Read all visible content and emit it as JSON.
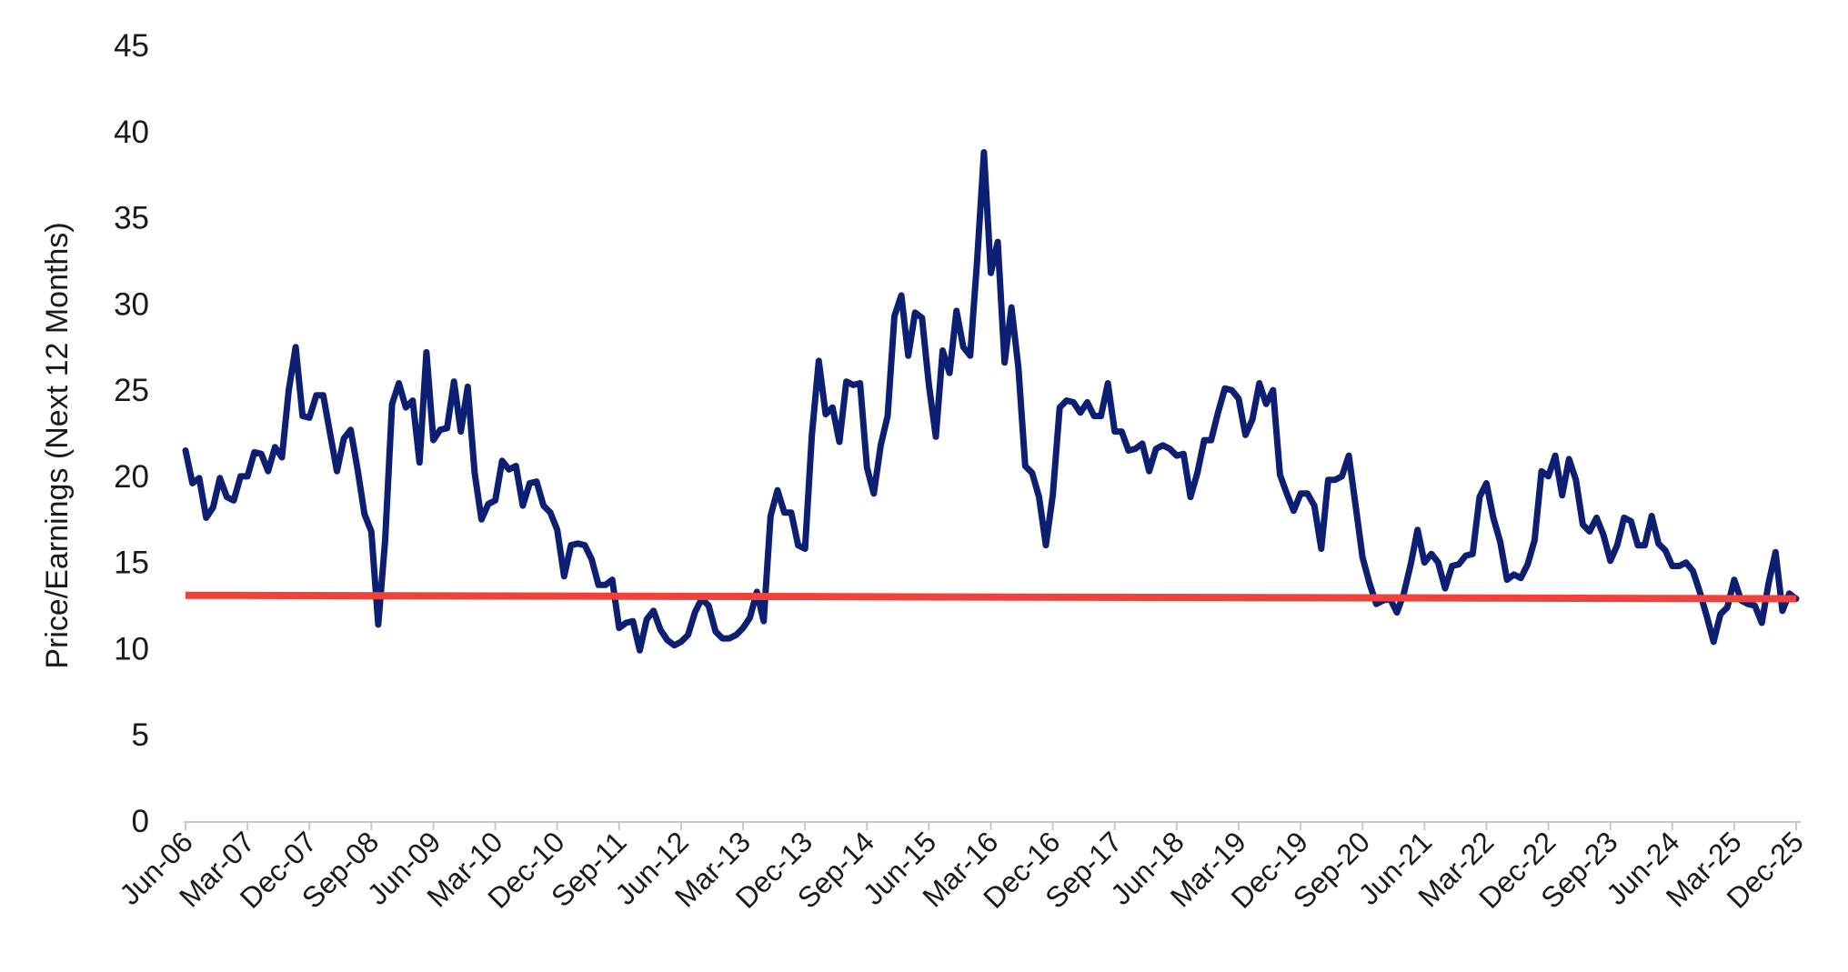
{
  "chart_data": {
    "type": "line",
    "title": "",
    "xlabel": "",
    "ylabel": "Price/Earnings (Next 12 Months)",
    "ylim": [
      0,
      45
    ],
    "y_ticks": [
      0,
      5,
      10,
      15,
      20,
      25,
      30,
      35,
      40,
      45
    ],
    "x_tick_labels": [
      "Jun-06",
      "Mar-07",
      "Dec-07",
      "Sep-08",
      "Jun-09",
      "Mar-10",
      "Dec-10",
      "Sep-11",
      "Jun-12",
      "Mar-13",
      "Dec-13",
      "Sep-14",
      "Jun-15",
      "Mar-16",
      "Dec-16",
      "Sep-17",
      "Jun-18",
      "Mar-19",
      "Dec-19",
      "Sep-20",
      "Jun-21",
      "Mar-22",
      "Dec-22",
      "Sep-23",
      "Jun-24",
      "Mar-25",
      "Dec-25"
    ],
    "grid": false,
    "colors": {
      "pe_line": "#0d1f73",
      "average_line": "#f0423a"
    },
    "series": [
      {
        "key": "pe_ratio",
        "color": "#0d1f73",
        "points": [
          [
            "Jun-06",
            21.5
          ],
          [
            "Jul-06",
            19.6
          ],
          [
            "Aug-06",
            19.9
          ],
          [
            "Sep-06",
            17.6
          ],
          [
            "Oct-06",
            18.2
          ],
          [
            "Nov-06",
            19.9
          ],
          [
            "Dec-06",
            18.8
          ],
          [
            "Jan-07",
            18.6
          ],
          [
            "Feb-07",
            20.0
          ],
          [
            "Mar-07",
            20.0
          ],
          [
            "Apr-07",
            21.4
          ],
          [
            "May-07",
            21.3
          ],
          [
            "Jun-07",
            20.3
          ],
          [
            "Jul-07",
            21.7
          ],
          [
            "Aug-07",
            21.1
          ],
          [
            "Sep-07",
            25.0
          ],
          [
            "Oct-07",
            27.5
          ],
          [
            "Nov-07",
            23.5
          ],
          [
            "Dec-07",
            23.4
          ],
          [
            "Jan-08",
            24.7
          ],
          [
            "Feb-08",
            24.7
          ],
          [
            "Mar-08",
            22.5
          ],
          [
            "Apr-08",
            20.3
          ],
          [
            "May-08",
            22.2
          ],
          [
            "Jun-08",
            22.7
          ],
          [
            "Jul-08",
            20.4
          ],
          [
            "Aug-08",
            17.8
          ],
          [
            "Sep-08",
            16.8
          ],
          [
            "Oct-08",
            11.4
          ],
          [
            "Nov-08",
            16.3
          ],
          [
            "Dec-08",
            24.2
          ],
          [
            "Jan-09",
            25.4
          ],
          [
            "Feb-09",
            24.0
          ],
          [
            "Mar-09",
            24.4
          ],
          [
            "Apr-09",
            20.8
          ],
          [
            "May-09",
            27.2
          ],
          [
            "Jun-09",
            22.1
          ],
          [
            "Jul-09",
            22.7
          ],
          [
            "Aug-09",
            22.8
          ],
          [
            "Sep-09",
            25.5
          ],
          [
            "Oct-09",
            22.6
          ],
          [
            "Nov-09",
            25.2
          ],
          [
            "Dec-09",
            20.2
          ],
          [
            "Jan-10",
            17.5
          ],
          [
            "Feb-10",
            18.4
          ],
          [
            "Mar-10",
            18.6
          ],
          [
            "Apr-10",
            20.9
          ],
          [
            "May-10",
            20.4
          ],
          [
            "Jun-10",
            20.6
          ],
          [
            "Jul-10",
            18.3
          ],
          [
            "Aug-10",
            19.6
          ],
          [
            "Sep-10",
            19.7
          ],
          [
            "Oct-10",
            18.3
          ],
          [
            "Nov-10",
            17.9
          ],
          [
            "Dec-10",
            16.9
          ],
          [
            "Jan-11",
            14.2
          ],
          [
            "Feb-11",
            16.0
          ],
          [
            "Mar-11",
            16.1
          ],
          [
            "Apr-11",
            16.0
          ],
          [
            "May-11",
            15.2
          ],
          [
            "Jun-11",
            13.7
          ],
          [
            "Jul-11",
            13.7
          ],
          [
            "Aug-11",
            14.0
          ],
          [
            "Sep-11",
            11.2
          ],
          [
            "Oct-11",
            11.5
          ],
          [
            "Nov-11",
            11.6
          ],
          [
            "Dec-11",
            9.9
          ],
          [
            "Jan-12",
            11.7
          ],
          [
            "Feb-12",
            12.2
          ],
          [
            "Mar-12",
            11.1
          ],
          [
            "Apr-12",
            10.5
          ],
          [
            "May-12",
            10.2
          ],
          [
            "Jun-12",
            10.4
          ],
          [
            "Jul-12",
            10.8
          ],
          [
            "Aug-12",
            12.1
          ],
          [
            "Sep-12",
            12.9
          ],
          [
            "Oct-12",
            12.5
          ],
          [
            "Nov-12",
            11.0
          ],
          [
            "Dec-12",
            10.6
          ],
          [
            "Jan-13",
            10.6
          ],
          [
            "Feb-13",
            10.8
          ],
          [
            "Mar-13",
            11.2
          ],
          [
            "Apr-13",
            11.8
          ],
          [
            "May-13",
            13.3
          ],
          [
            "Jun-13",
            11.6
          ],
          [
            "Jul-13",
            17.7
          ],
          [
            "Aug-13",
            19.2
          ],
          [
            "Sep-13",
            17.9
          ],
          [
            "Oct-13",
            17.9
          ],
          [
            "Nov-13",
            16.0
          ],
          [
            "Dec-13",
            15.8
          ],
          [
            "Jan-14",
            22.4
          ],
          [
            "Feb-14",
            26.7
          ],
          [
            "Mar-14",
            23.6
          ],
          [
            "Apr-14",
            24.0
          ],
          [
            "May-14",
            22.0
          ],
          [
            "Jun-14",
            25.5
          ],
          [
            "Jul-14",
            25.3
          ],
          [
            "Aug-14",
            25.4
          ],
          [
            "Sep-14",
            20.5
          ],
          [
            "Oct-14",
            19.0
          ],
          [
            "Nov-14",
            21.8
          ],
          [
            "Dec-14",
            23.5
          ],
          [
            "Jan-15",
            29.3
          ],
          [
            "Feb-15",
            30.5
          ],
          [
            "Mar-15",
            27.0
          ],
          [
            "Apr-15",
            29.5
          ],
          [
            "May-15",
            29.2
          ],
          [
            "Jun-15",
            25.3
          ],
          [
            "Jul-15",
            22.3
          ],
          [
            "Aug-15",
            27.3
          ],
          [
            "Sep-15",
            26.0
          ],
          [
            "Oct-15",
            29.6
          ],
          [
            "Nov-15",
            27.5
          ],
          [
            "Dec-15",
            27.0
          ],
          [
            "Jan-16",
            32.5
          ],
          [
            "Feb-16",
            38.8
          ],
          [
            "Mar-16",
            31.8
          ],
          [
            "Apr-16",
            33.6
          ],
          [
            "May-16",
            26.6
          ],
          [
            "Jun-16",
            29.8
          ],
          [
            "Jul-16",
            26.3
          ],
          [
            "Aug-16",
            20.6
          ],
          [
            "Sep-16",
            20.2
          ],
          [
            "Oct-16",
            18.8
          ],
          [
            "Nov-16",
            16.0
          ],
          [
            "Dec-16",
            18.9
          ],
          [
            "Jan-17",
            24.0
          ],
          [
            "Feb-17",
            24.4
          ],
          [
            "Mar-17",
            24.3
          ],
          [
            "Apr-17",
            23.7
          ],
          [
            "May-17",
            24.3
          ],
          [
            "Jun-17",
            23.5
          ],
          [
            "Jul-17",
            23.5
          ],
          [
            "Aug-17",
            25.4
          ],
          [
            "Sep-17",
            22.6
          ],
          [
            "Oct-17",
            22.6
          ],
          [
            "Nov-17",
            21.5
          ],
          [
            "Dec-17",
            21.6
          ],
          [
            "Jan-18",
            21.9
          ],
          [
            "Feb-18",
            20.3
          ],
          [
            "Mar-18",
            21.6
          ],
          [
            "Apr-18",
            21.8
          ],
          [
            "May-18",
            21.6
          ],
          [
            "Jun-18",
            21.2
          ],
          [
            "Jul-18",
            21.3
          ],
          [
            "Aug-18",
            18.8
          ],
          [
            "Sep-18",
            20.2
          ],
          [
            "Oct-18",
            22.1
          ],
          [
            "Nov-18",
            22.1
          ],
          [
            "Dec-18",
            23.7
          ],
          [
            "Jan-19",
            25.1
          ],
          [
            "Feb-19",
            25.0
          ],
          [
            "Mar-19",
            24.5
          ],
          [
            "Apr-19",
            22.4
          ],
          [
            "May-19",
            23.3
          ],
          [
            "Jun-19",
            25.4
          ],
          [
            "Jul-19",
            24.2
          ],
          [
            "Aug-19",
            25.0
          ],
          [
            "Sep-19",
            20.1
          ],
          [
            "Oct-19",
            19.0
          ],
          [
            "Nov-19",
            18.0
          ],
          [
            "Dec-19",
            19.0
          ],
          [
            "Jan-20",
            19.0
          ],
          [
            "Feb-20",
            18.3
          ],
          [
            "Mar-20",
            15.8
          ],
          [
            "Apr-20",
            19.8
          ],
          [
            "May-20",
            19.8
          ],
          [
            "Jun-20",
            20.0
          ],
          [
            "Jul-20",
            21.2
          ],
          [
            "Aug-20",
            18.3
          ],
          [
            "Sep-20",
            15.3
          ],
          [
            "Oct-20",
            13.8
          ],
          [
            "Nov-20",
            12.6
          ],
          [
            "Dec-20",
            12.8
          ],
          [
            "Jan-21",
            12.9
          ],
          [
            "Feb-21",
            12.1
          ],
          [
            "Mar-21",
            13.2
          ],
          [
            "Apr-21",
            14.9
          ],
          [
            "May-21",
            16.9
          ],
          [
            "Jun-21",
            15.0
          ],
          [
            "Jul-21",
            15.5
          ],
          [
            "Aug-21",
            15.0
          ],
          [
            "Sep-21",
            13.5
          ],
          [
            "Oct-21",
            14.8
          ],
          [
            "Nov-21",
            14.9
          ],
          [
            "Dec-21",
            15.4
          ],
          [
            "Jan-22",
            15.5
          ],
          [
            "Feb-22",
            18.8
          ],
          [
            "Mar-22",
            19.6
          ],
          [
            "Apr-22",
            17.6
          ],
          [
            "May-22",
            16.2
          ],
          [
            "Jun-22",
            14.0
          ],
          [
            "Jul-22",
            14.3
          ],
          [
            "Aug-22",
            14.1
          ],
          [
            "Sep-22",
            14.9
          ],
          [
            "Oct-22",
            16.3
          ],
          [
            "Nov-22",
            20.3
          ],
          [
            "Dec-22",
            20.0
          ],
          [
            "Jan-23",
            21.2
          ],
          [
            "Feb-23",
            18.9
          ],
          [
            "Mar-23",
            21.0
          ],
          [
            "Apr-23",
            19.8
          ],
          [
            "May-23",
            17.2
          ],
          [
            "Jun-23",
            16.8
          ],
          [
            "Jul-23",
            17.6
          ],
          [
            "Aug-23",
            16.6
          ],
          [
            "Sep-23",
            15.1
          ],
          [
            "Oct-23",
            16.0
          ],
          [
            "Nov-23",
            17.6
          ],
          [
            "Dec-23",
            17.4
          ],
          [
            "Jan-24",
            16.0
          ],
          [
            "Feb-24",
            16.0
          ],
          [
            "Mar-24",
            17.7
          ],
          [
            "Apr-24",
            16.1
          ],
          [
            "May-24",
            15.7
          ],
          [
            "Jun-24",
            14.8
          ],
          [
            "Jul-24",
            14.8
          ],
          [
            "Aug-24",
            15.0
          ],
          [
            "Sep-24",
            14.5
          ],
          [
            "Oct-24",
            13.3
          ],
          [
            "Nov-24",
            11.9
          ],
          [
            "Dec-24",
            10.4
          ],
          [
            "Jan-25",
            12.0
          ],
          [
            "Feb-25",
            12.4
          ],
          [
            "Mar-25",
            14.0
          ],
          [
            "Apr-25",
            12.8
          ],
          [
            "May-25",
            12.6
          ],
          [
            "Jun-25",
            12.5
          ],
          [
            "Jul-25",
            11.5
          ],
          [
            "Aug-25",
            13.8
          ],
          [
            "Sep-25",
            15.6
          ],
          [
            "Oct-25",
            12.2
          ],
          [
            "Nov-25",
            13.2
          ],
          [
            "Dec-25",
            12.9
          ]
        ]
      },
      {
        "key": "average",
        "color": "#f0423a",
        "points": [
          [
            "Jun-06",
            13.1
          ],
          [
            "Dec-25",
            12.9
          ]
        ]
      }
    ]
  }
}
